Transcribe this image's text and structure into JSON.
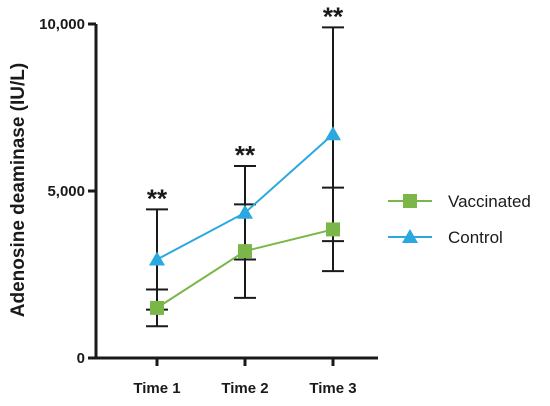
{
  "chart_data": {
    "type": "line",
    "title": "",
    "xlabel": "",
    "ylabel": "Adenosine deaminase (IU/L)",
    "categories": [
      "Time 1",
      "Time 2",
      "Time 3"
    ],
    "ylim": [
      0,
      10000
    ],
    "yticks": [
      0,
      5000,
      10000
    ],
    "ytick_labels": [
      "0",
      "5,000",
      "10,000"
    ],
    "grid": false,
    "legend_position": "right",
    "series": [
      {
        "name": "Vaccinated",
        "marker": "square",
        "color": "#7ab648",
        "values": [
          1500,
          3200,
          3850
        ],
        "error": [
          550,
          1400,
          1250
        ]
      },
      {
        "name": "Control",
        "marker": "triangle",
        "color": "#2ba8e0",
        "values": [
          2950,
          4350,
          6700
        ],
        "error": [
          1500,
          1400,
          3200
        ]
      }
    ],
    "annotations": [
      {
        "category": "Time 1",
        "text": "**"
      },
      {
        "category": "Time 2",
        "text": "**"
      },
      {
        "category": "Time 3",
        "text": "**"
      }
    ]
  }
}
